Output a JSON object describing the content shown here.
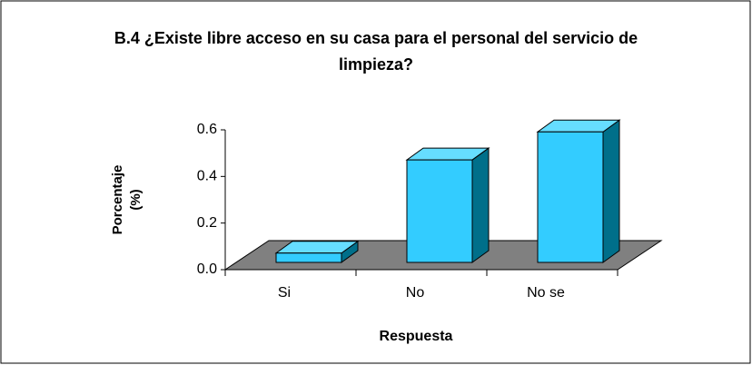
{
  "chart_data": {
    "type": "bar3d",
    "title": "B.4 ¿Existe libre acceso en su casa para el personal del servicio de limpieza?",
    "x_label": "Respuesta",
    "y_label": "Porcentaje (%)",
    "categories": [
      "Si",
      "No",
      "No se"
    ],
    "values": [
      0.04,
      0.44,
      0.56
    ],
    "color": "#33ccff",
    "ylim": [
      0,
      0.6
    ],
    "yticks": [
      {
        "value": 0,
        "label": "0.0"
      },
      0.2,
      0.4,
      0.6
    ]
  }
}
